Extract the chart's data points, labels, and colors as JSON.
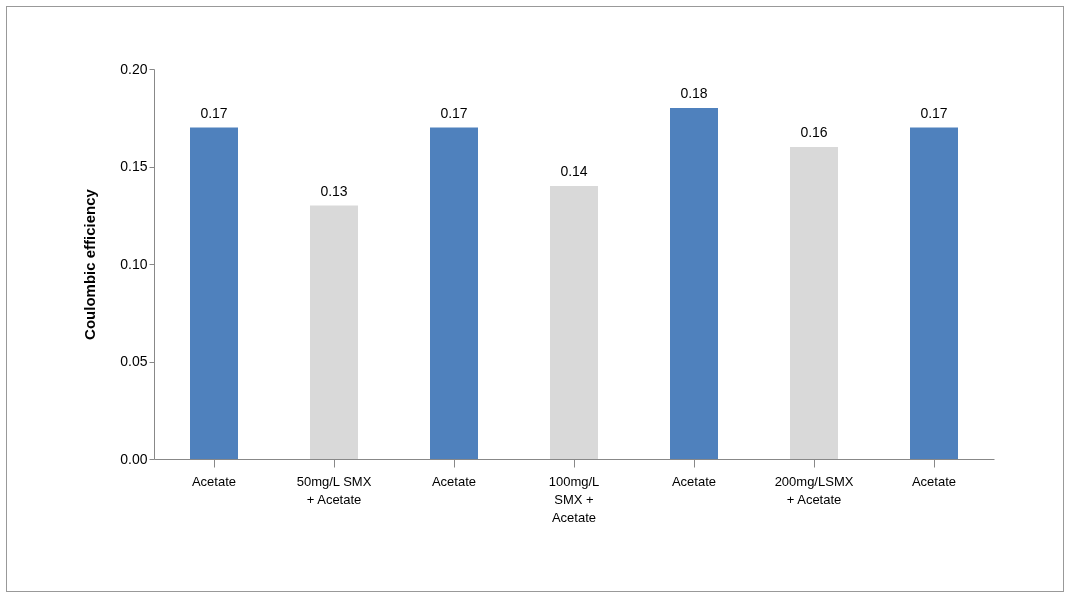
{
  "chart_data": {
    "type": "bar",
    "categories": [
      "Acetate",
      "50mg/L SMX\n+ Acetate",
      "Acetate",
      "100mg/L\nSMX +\nAcetate",
      "Acetate",
      "200mg/LSMX\n+ Acetate",
      "Acetate"
    ],
    "values": [
      0.17,
      0.13,
      0.17,
      0.14,
      0.18,
      0.16,
      0.17
    ],
    "colors": [
      "#4f81bd",
      "#d9d9d9",
      "#4f81bd",
      "#d9d9d9",
      "#4f81bd",
      "#d9d9d9",
      "#4f81bd"
    ],
    "ylabel": "Coulombic efficiency",
    "ylim": [
      0,
      0.2
    ],
    "yticks": [
      {
        "value": 0,
        "label": "0.00"
      },
      {
        "value": 0.05,
        "label": "0.05"
      },
      {
        "value": 0.1,
        "label": "0.10"
      },
      {
        "value": 0.15,
        "label": "0.15"
      },
      {
        "value": 0.2,
        "label": "0.20"
      }
    ],
    "data_labels": true,
    "grid": false
  }
}
